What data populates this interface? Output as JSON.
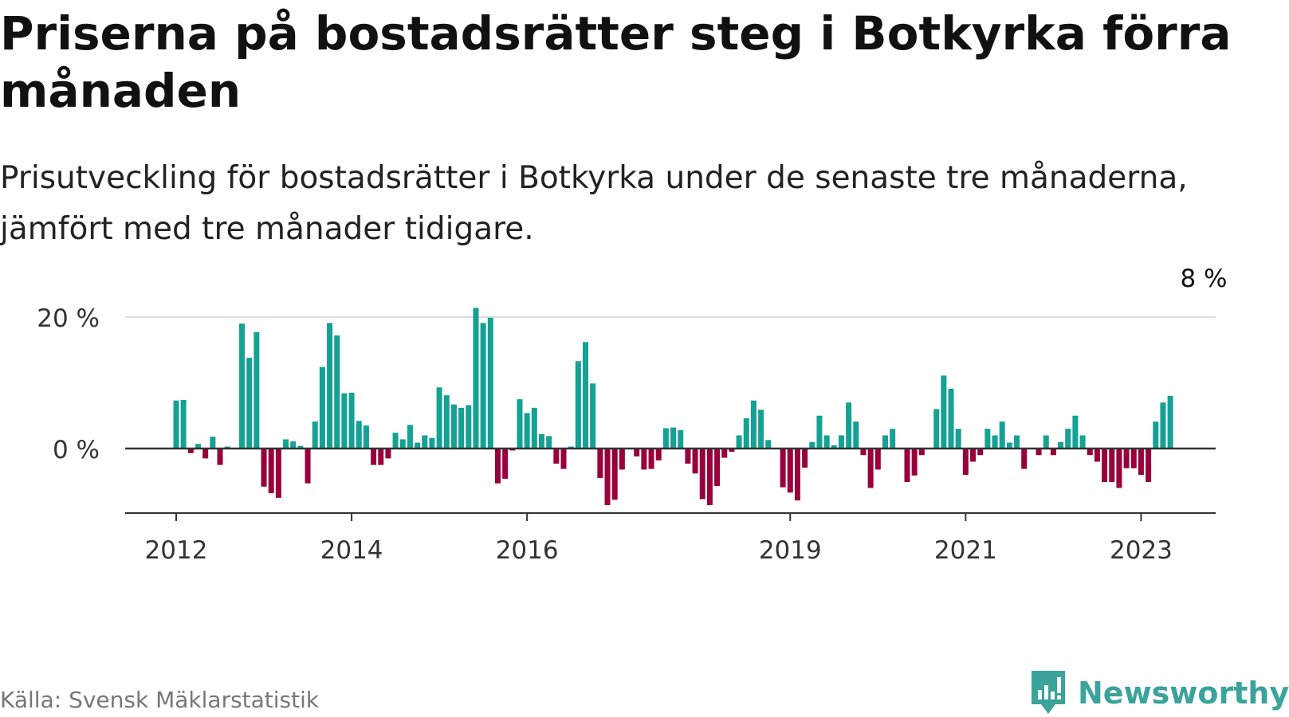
{
  "title": "Priserna på bostadsrätter steg i Botkyrka förra månaden",
  "subtitle": "Prisutveckling för bostadsrätter i Botkyrka under de senaste tre månaderna, jämfört med tre månader tidigare.",
  "source": "Källa: Svensk Mäklarstatistik",
  "brand": {
    "name": "Newsworthy",
    "icon": "newsworthy-logo-icon"
  },
  "colors": {
    "positive": "#15a193",
    "negative": "#99003b",
    "grid": "#dddddd",
    "axis": "#333333",
    "accent": "#3aa39b"
  },
  "chart_data": {
    "type": "bar",
    "title": "Priserna på bostadsrätter steg i Botkyrka förra månaden",
    "xlabel": "",
    "ylabel": "",
    "unit": "%",
    "ylim": [
      -10,
      20
    ],
    "y_ticks": [
      {
        "value": 0,
        "label": "0 %"
      },
      {
        "value": 20,
        "label": "20 %"
      }
    ],
    "x_ticks": [
      {
        "index": 0,
        "label": "2012"
      },
      {
        "index": 24,
        "label": "2014"
      },
      {
        "index": 48,
        "label": "2016"
      },
      {
        "index": 84,
        "label": "2019"
      },
      {
        "index": 108,
        "label": "2021"
      },
      {
        "index": 132,
        "label": "2023"
      }
    ],
    "start": "2012-01",
    "values": [
      7.3,
      7.4,
      -0.7,
      0.7,
      -1.5,
      1.8,
      -2.5,
      0.3,
      0,
      19.0,
      13.8,
      17.7,
      -5.8,
      -6.8,
      -7.5,
      1.4,
      1.1,
      0.4,
      -5.3,
      4.1,
      12.4,
      19.1,
      17.2,
      8.4,
      8.5,
      4.2,
      3.5,
      -2.5,
      -2.5,
      -1.5,
      2.4,
      1.4,
      3.6,
      0.9,
      2.0,
      1.6,
      9.3,
      8.1,
      6.7,
      6.2,
      6.6,
      21.4,
      19.1,
      19.9,
      -5.3,
      -4.6,
      -0.3,
      7.5,
      5.4,
      6.2,
      2.2,
      1.9,
      -2.3,
      -3.1,
      0.3,
      13.3,
      16.2,
      9.9,
      -4.5,
      -8.6,
      -7.8,
      -3.2,
      0,
      -1.2,
      -3.2,
      -3.1,
      -1.8,
      3.1,
      3.2,
      2.8,
      -2.3,
      -3.8,
      -7.7,
      -8.6,
      -5.7,
      -1.4,
      -0.5,
      2.0,
      4.6,
      7.3,
      5.9,
      1.3,
      0,
      -5.9,
      -6.7,
      -7.9,
      -2.9,
      1.0,
      5.0,
      2.0,
      0.5,
      2.0,
      7.0,
      4.1,
      -1.0,
      -6.0,
      -3.2,
      2.0,
      3.0,
      0,
      -5.1,
      -4.1,
      -1.0,
      0,
      6.0,
      11.1,
      9.1,
      3.0,
      -4.0,
      -2.0,
      -1.0,
      3.0,
      2.0,
      4.1,
      0.9,
      2.0,
      -3.1,
      0,
      -1.0,
      2.0,
      -1.0,
      1.0,
      3.0,
      5.0,
      2.0,
      -1.0,
      -2.0,
      -5.1,
      -5.1,
      -6.0,
      -3.0,
      -3.0,
      -4.0,
      -5.1,
      4.1,
      7.0,
      8.0
    ],
    "annotation": {
      "index": 141,
      "label": "8 %"
    }
  }
}
